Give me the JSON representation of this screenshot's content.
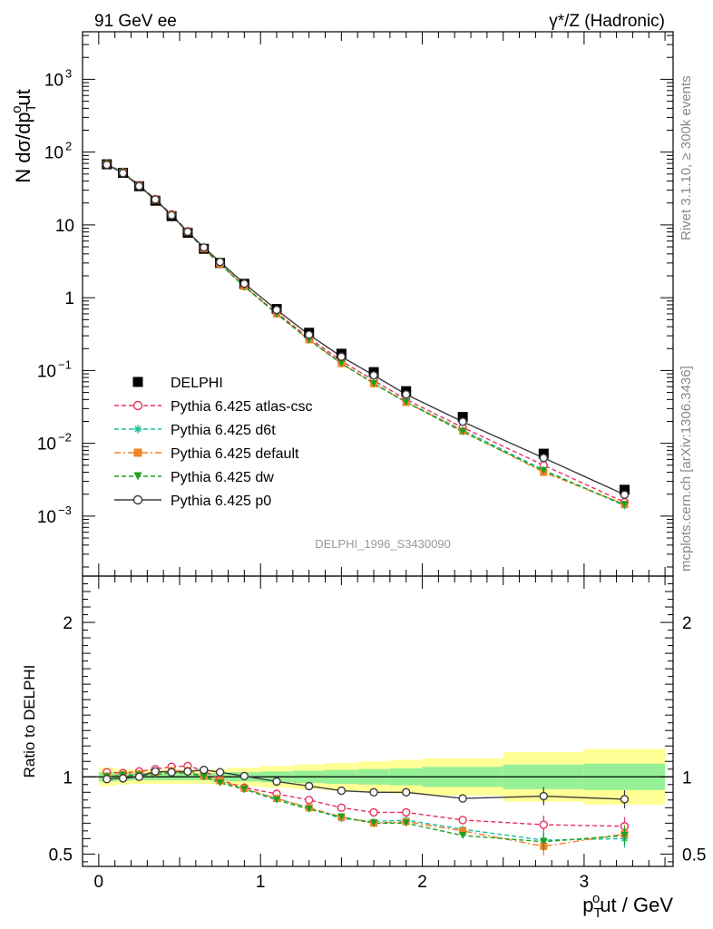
{
  "header": {
    "left": "91 GeV ee",
    "right": "γ*/Z (Hadronic)"
  },
  "side": {
    "rivet": "Rivet 3.1.10, ≥ 300k events",
    "mcplots": "mcplots.cern.ch [arXiv:1306.3436]"
  },
  "watermark": "DELPHI_1996_S3430090",
  "chart_data": [
    {
      "type": "scatter",
      "panel": "main",
      "ylabel": "N dσ/dp_T^out",
      "xlabel": "p_T^out / GeV",
      "yscale": "log",
      "xlim": [
        -0.1,
        3.55
      ],
      "ylim": [
        0.00015,
        4500
      ],
      "y_tick_labels": [
        "10^-3",
        "10^-2",
        "10^-1",
        "1",
        "10",
        "10^2",
        "10^3"
      ],
      "legend_position": "middle-left",
      "x": [
        0.05,
        0.15,
        0.25,
        0.35,
        0.45,
        0.55,
        0.65,
        0.75,
        0.9,
        1.1,
        1.3,
        1.5,
        1.7,
        1.9,
        2.25,
        2.75,
        3.25
      ],
      "series": [
        {
          "name": "DELPHI",
          "marker": "square",
          "color": "#000000",
          "values": [
            68,
            52,
            34,
            21.5,
            13.2,
            7.8,
            4.7,
            3.0,
            1.55,
            0.7,
            0.33,
            0.17,
            0.095,
            0.052,
            0.023,
            0.0072,
            0.0023
          ]
        },
        {
          "name": "Pythia 6.425 atlas-csc",
          "marker": "open-circle",
          "color": "#e8305c",
          "dash": "dashed",
          "values": [
            68.5,
            53.2,
            35.1,
            22.6,
            14.0,
            8.2,
            4.8,
            2.9,
            1.44,
            0.62,
            0.28,
            0.135,
            0.073,
            0.04,
            0.0165,
            0.005,
            0.00155
          ]
        },
        {
          "name": "Pythia 6.425 d6t",
          "marker": "star",
          "color": "#1cc0a0",
          "dash": "dashed",
          "values": [
            68.2,
            52.8,
            34.5,
            22.0,
            13.7,
            8.0,
            4.7,
            2.9,
            1.42,
            0.6,
            0.265,
            0.124,
            0.067,
            0.037,
            0.0152,
            0.0043,
            0.00139
          ]
        },
        {
          "name": "Pythia 6.425 default",
          "marker": "filled-square",
          "color": "#f08228",
          "dash": "dashdot",
          "values": [
            68.4,
            52.9,
            34.6,
            22.1,
            13.8,
            8.05,
            4.72,
            2.92,
            1.43,
            0.6,
            0.265,
            0.125,
            0.066,
            0.0365,
            0.0148,
            0.004,
            0.00145
          ]
        },
        {
          "name": "Pythia 6.425 dw",
          "marker": "triangle-down",
          "color": "#1ea01e",
          "dash": "dashed",
          "values": [
            68.0,
            52.6,
            34.3,
            21.8,
            13.5,
            7.9,
            4.66,
            2.9,
            1.43,
            0.6,
            0.262,
            0.126,
            0.066,
            0.0368,
            0.0143,
            0.0042,
            0.00143
          ]
        },
        {
          "name": "Pythia 6.425 p0",
          "marker": "open-circle",
          "color": "#3c3c3c",
          "dash": "solid",
          "values": [
            67.0,
            51.5,
            34.1,
            22.3,
            13.6,
            8.05,
            4.9,
            3.1,
            1.56,
            0.68,
            0.31,
            0.155,
            0.086,
            0.047,
            0.0198,
            0.0063,
            0.00197
          ]
        }
      ]
    },
    {
      "type": "line",
      "panel": "ratio",
      "ylabel": "Ratio to DELPHI",
      "xlabel": "p_T^out / GeV",
      "xlim": [
        -0.1,
        3.55
      ],
      "ylim": [
        0.42,
        2.3
      ],
      "y_tick_labels": [
        "0.5",
        "1",
        "2"
      ],
      "x_tick_labels": [
        "0",
        "1",
        "2",
        "3"
      ],
      "bin_edges": [
        0,
        0.1,
        0.2,
        0.3,
        0.4,
        0.5,
        0.6,
        0.7,
        0.8,
        1.0,
        1.2,
        1.4,
        1.6,
        1.8,
        2.0,
        2.5,
        3.0,
        3.5
      ],
      "band_inner": [
        0.03,
        0.025,
        0.022,
        0.022,
        0.022,
        0.022,
        0.022,
        0.025,
        0.03,
        0.035,
        0.04,
        0.045,
        0.05,
        0.055,
        0.065,
        0.08,
        0.085
      ],
      "band_outer": [
        0.06,
        0.05,
        0.045,
        0.045,
        0.045,
        0.045,
        0.045,
        0.05,
        0.06,
        0.07,
        0.08,
        0.09,
        0.1,
        0.11,
        0.12,
        0.16,
        0.18
      ],
      "x": [
        0.05,
        0.15,
        0.25,
        0.35,
        0.45,
        0.55,
        0.65,
        0.75,
        0.9,
        1.1,
        1.3,
        1.5,
        1.7,
        1.9,
        2.25,
        2.75,
        3.25
      ],
      "series": [
        {
          "name": "Pythia 6.425 atlas-csc",
          "color": "#e8305c",
          "dash": "dashed",
          "marker": "open-circle",
          "values": [
            1.03,
            1.025,
            1.035,
            1.05,
            1.065,
            1.07,
            1.04,
            0.98,
            0.93,
            0.89,
            0.85,
            0.8,
            0.77,
            0.77,
            0.72,
            0.69,
            0.68
          ]
        },
        {
          "name": "Pythia 6.425 d6t",
          "color": "#1cc0a0",
          "dash": "dashed",
          "marker": "star",
          "values": [
            1.0,
            1.015,
            1.015,
            1.025,
            1.035,
            1.035,
            1.0,
            0.97,
            0.92,
            0.86,
            0.8,
            0.73,
            0.71,
            0.72,
            0.66,
            0.59,
            0.6
          ]
        },
        {
          "name": "Pythia 6.425 default",
          "color": "#f08228",
          "dash": "dashdot",
          "marker": "filled-square",
          "values": [
            1.005,
            1.015,
            1.02,
            1.03,
            1.04,
            1.04,
            1.005,
            0.975,
            0.925,
            0.86,
            0.8,
            0.74,
            0.7,
            0.71,
            0.65,
            0.55,
            0.63
          ]
        },
        {
          "name": "Pythia 6.425 dw",
          "color": "#1ea01e",
          "dash": "dashed",
          "marker": "triangle-down",
          "values": [
            1.0,
            1.01,
            1.01,
            1.015,
            1.025,
            1.025,
            1.0,
            0.96,
            0.92,
            0.85,
            0.79,
            0.74,
            0.7,
            0.7,
            0.62,
            0.58,
            0.62
          ]
        },
        {
          "name": "Pythia 6.425 p0",
          "color": "#3c3c3c",
          "dash": "solid",
          "marker": "open-circle",
          "values": [
            0.985,
            0.99,
            1.0,
            1.035,
            1.03,
            1.035,
            1.045,
            1.03,
            1.005,
            0.97,
            0.94,
            0.91,
            0.9,
            0.9,
            0.86,
            0.875,
            0.855
          ]
        }
      ]
    }
  ]
}
